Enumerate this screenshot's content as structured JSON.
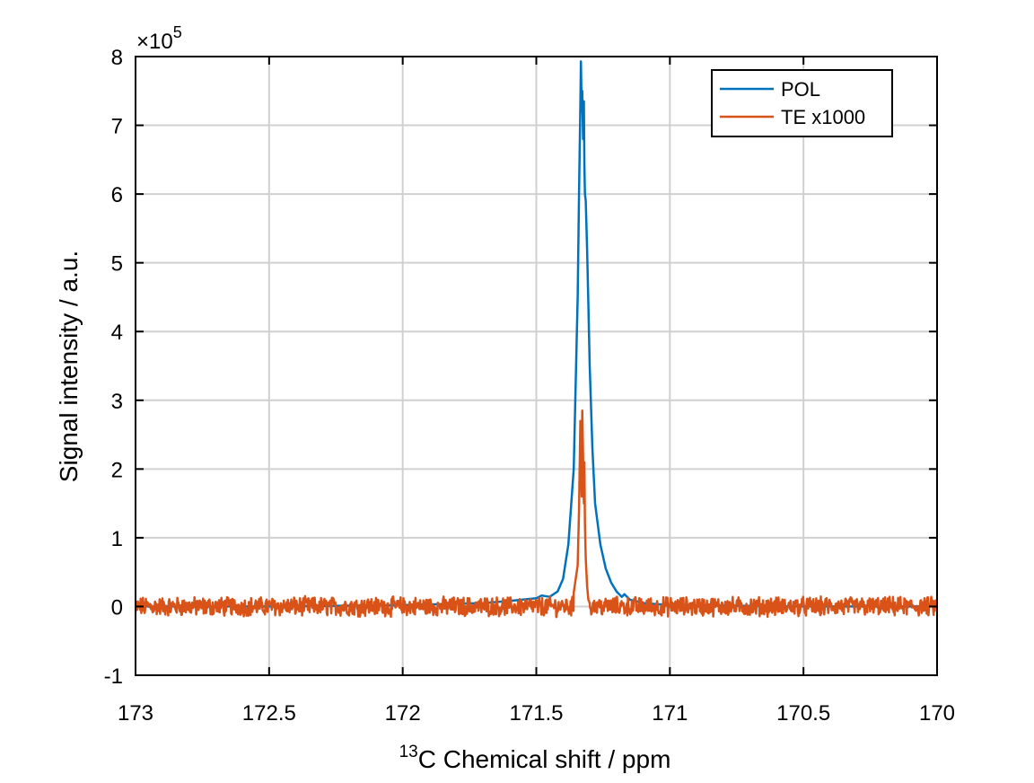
{
  "chart_data": {
    "type": "line",
    "xlabel_sup": "13",
    "xlabel_main": "C Chemical shift / ppm",
    "ylabel": "Signal intensity / a.u.",
    "y_multiplier_base": "×10",
    "y_multiplier_exp": "5",
    "xlim": [
      173,
      170
    ],
    "x_reversed": true,
    "ylim": [
      -1,
      8
    ],
    "grid": true,
    "legend_position": "top-right",
    "x_ticks": [
      173,
      172.5,
      172,
      171.5,
      171,
      170.5,
      170
    ],
    "x_tick_labels": [
      "173",
      "172.5",
      "172",
      "171.5",
      "171",
      "170.5",
      "170"
    ],
    "y_ticks": [
      -1,
      0,
      1,
      2,
      3,
      4,
      5,
      6,
      7,
      8
    ],
    "y_tick_labels": [
      "-1",
      "0",
      "1",
      "2",
      "3",
      "4",
      "5",
      "6",
      "7",
      "8"
    ],
    "series": [
      {
        "name": "POL",
        "color": "#0072BD",
        "x": [
          173.0,
          172.5,
          172.0,
          171.7,
          171.6,
          171.55,
          171.5,
          171.48,
          171.45,
          171.42,
          171.4,
          171.38,
          171.36,
          171.345,
          171.34,
          171.335,
          171.333,
          171.33,
          171.328,
          171.325,
          171.322,
          171.32,
          171.318,
          171.315,
          171.31,
          171.305,
          171.3,
          171.29,
          171.28,
          171.26,
          171.24,
          171.22,
          171.2,
          171.18,
          171.17,
          171.15,
          171.1,
          171.0,
          170.5,
          170.0
        ],
        "values": [
          0.0,
          0.0,
          0.02,
          0.05,
          0.08,
          0.1,
          0.12,
          0.16,
          0.14,
          0.22,
          0.4,
          0.9,
          2.0,
          4.5,
          6.0,
          7.3,
          7.93,
          7.2,
          7.5,
          6.8,
          7.35,
          6.4,
          6.0,
          5.9,
          5.2,
          4.4,
          3.5,
          2.3,
          1.5,
          0.9,
          0.55,
          0.35,
          0.22,
          0.14,
          0.18,
          0.1,
          0.05,
          0.02,
          0.0,
          0.0
        ]
      },
      {
        "name": "TE x1000",
        "color": "#D95319",
        "x": [
          171.36,
          171.345,
          171.34,
          171.335,
          171.33,
          171.328,
          171.325,
          171.322,
          171.32,
          171.318,
          171.315,
          171.31,
          171.305,
          171.3
        ],
        "values": [
          0.2,
          0.6,
          1.4,
          2.7,
          1.6,
          2.85,
          2.2,
          1.5,
          2.1,
          1.2,
          0.7,
          0.3,
          0.1,
          0.05
        ],
        "baseline_noise_amplitude": 0.12
      }
    ]
  }
}
